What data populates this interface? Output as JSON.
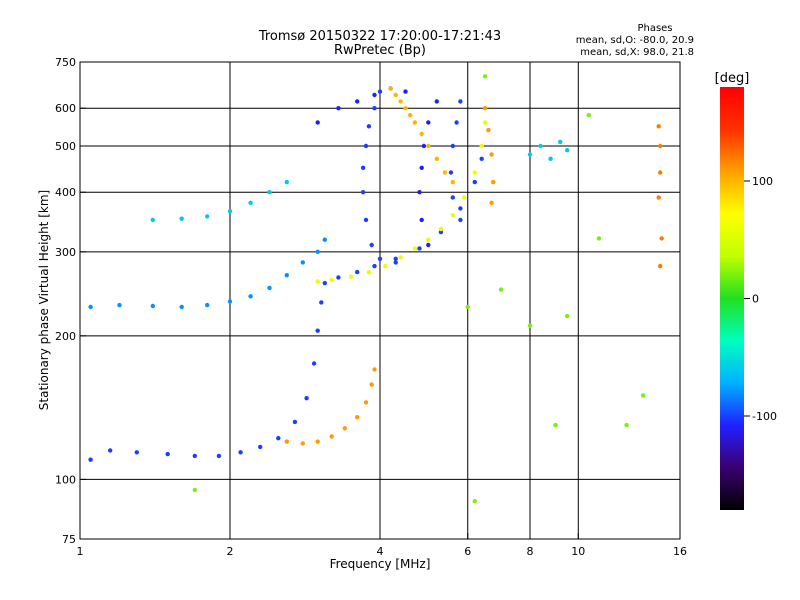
{
  "chart_data": {
    "type": "scatter",
    "title": "Tromsø 20150322 17:20:00-17:21:43",
    "subtitle": "RwPretec (Bp)",
    "xlabel": "Frequency [MHz]",
    "ylabel": "Stationary phase Virtual Height [km]",
    "x_scale": "log",
    "y_scale": "log",
    "xlim": [
      1,
      16
    ],
    "ylim": [
      75,
      750
    ],
    "x_ticks": [
      1,
      2,
      4,
      6,
      8,
      10,
      16
    ],
    "y_ticks": [
      75,
      100,
      200,
      300,
      400,
      500,
      600,
      750
    ],
    "grid": true,
    "stats": {
      "heading": "Phases",
      "line1": "mean, sd,O: -80.0, 20.9",
      "line2": "mean, sd,X: 98.0, 21.8"
    },
    "colorbar": {
      "label": "[deg]",
      "min": -180,
      "max": 180,
      "ticks": [
        100,
        0,
        -100
      ],
      "colors": [
        "#000000",
        "#3a0070",
        "#2020ff",
        "#00b0ff",
        "#00ffc0",
        "#20e020",
        "#c0ff00",
        "#ffff00",
        "#ffa000",
        "#ff3000",
        "#ff0000"
      ]
    },
    "series": [
      {
        "values": [
          [
            1.05,
            110
          ],
          [
            1.15,
            115
          ],
          [
            1.3,
            114
          ],
          [
            1.5,
            113
          ],
          [
            1.7,
            112
          ],
          [
            1.9,
            112
          ],
          [
            2.1,
            114
          ],
          [
            2.3,
            117
          ],
          [
            2.5,
            122
          ],
          [
            2.7,
            132
          ],
          [
            2.85,
            148
          ],
          [
            2.95,
            175
          ],
          [
            3.0,
            205
          ],
          [
            3.05,
            235
          ],
          [
            3.1,
            258
          ],
          [
            3.3,
            265
          ],
          [
            3.6,
            272
          ],
          [
            3.9,
            280
          ],
          [
            4.3,
            290
          ],
          [
            4.8,
            305
          ],
          [
            5.3,
            330
          ],
          [
            5.8,
            370
          ],
          [
            6.2,
            420
          ],
          [
            6.4,
            470
          ]
        ],
        "phase": -100
      },
      {
        "values": [
          [
            2.6,
            120
          ],
          [
            2.8,
            119
          ],
          [
            3.0,
            120
          ],
          [
            3.2,
            123
          ],
          [
            3.4,
            128
          ],
          [
            3.6,
            135
          ],
          [
            3.75,
            145
          ],
          [
            3.85,
            158
          ],
          [
            3.9,
            170
          ]
        ],
        "phase": 110
      },
      {
        "values": [
          [
            1.05,
            230
          ],
          [
            1.2,
            232
          ],
          [
            1.4,
            231
          ],
          [
            1.6,
            230
          ],
          [
            1.8,
            232
          ],
          [
            2.0,
            236
          ],
          [
            2.2,
            242
          ],
          [
            2.4,
            252
          ],
          [
            2.6,
            268
          ],
          [
            2.8,
            285
          ],
          [
            3.0,
            300
          ],
          [
            3.1,
            318
          ]
        ],
        "phase": -80
      },
      {
        "values": [
          [
            1.4,
            350
          ],
          [
            1.6,
            352
          ],
          [
            1.8,
            356
          ],
          [
            2.0,
            365
          ],
          [
            2.2,
            380
          ],
          [
            2.4,
            400
          ],
          [
            2.6,
            420
          ]
        ],
        "phase": -60
      },
      {
        "values": [
          [
            3.0,
            260
          ],
          [
            3.2,
            262
          ],
          [
            3.5,
            266
          ],
          [
            3.8,
            272
          ],
          [
            4.1,
            280
          ],
          [
            4.4,
            292
          ],
          [
            4.7,
            305
          ],
          [
            5.0,
            318
          ],
          [
            5.3,
            335
          ],
          [
            5.6,
            358
          ],
          [
            5.9,
            390
          ],
          [
            6.2,
            440
          ],
          [
            6.4,
            500
          ],
          [
            6.5,
            560
          ]
        ],
        "phase": 60
      },
      {
        "values": [
          [
            3.0,
            560
          ],
          [
            3.3,
            600
          ],
          [
            3.6,
            620
          ],
          [
            3.9,
            640
          ],
          [
            4.2,
            660
          ],
          [
            4.5,
            650
          ]
        ],
        "phase": -110
      },
      {
        "values": [
          [
            4.2,
            660
          ],
          [
            4.3,
            640
          ],
          [
            4.4,
            620
          ],
          [
            4.5,
            600
          ],
          [
            4.6,
            580
          ],
          [
            4.7,
            560
          ],
          [
            4.85,
            530
          ],
          [
            5.0,
            500
          ],
          [
            5.2,
            470
          ],
          [
            5.4,
            440
          ],
          [
            5.6,
            420
          ]
        ],
        "phase": 100
      },
      {
        "values": [
          [
            4.0,
            650
          ],
          [
            3.9,
            600
          ],
          [
            3.8,
            550
          ],
          [
            3.75,
            500
          ],
          [
            3.7,
            450
          ],
          [
            3.7,
            400
          ],
          [
            3.75,
            350
          ],
          [
            3.85,
            310
          ],
          [
            4.0,
            290
          ],
          [
            4.3,
            285
          ]
        ],
        "phase": -100
      },
      {
        "values": [
          [
            5.2,
            620
          ],
          [
            5.0,
            560
          ],
          [
            4.9,
            500
          ],
          [
            4.85,
            450
          ],
          [
            4.8,
            400
          ],
          [
            4.85,
            350
          ],
          [
            5.0,
            310
          ]
        ],
        "phase": -110
      },
      {
        "values": [
          [
            5.8,
            620
          ],
          [
            5.7,
            560
          ],
          [
            5.6,
            500
          ],
          [
            5.55,
            440
          ],
          [
            5.6,
            390
          ],
          [
            5.8,
            350
          ]
        ],
        "phase": -100
      },
      {
        "values": [
          [
            6.5,
            600
          ],
          [
            6.6,
            540
          ],
          [
            6.7,
            480
          ],
          [
            6.75,
            420
          ],
          [
            6.7,
            380
          ]
        ],
        "phase": 110
      },
      {
        "values": [
          [
            8.0,
            480
          ],
          [
            8.4,
            500
          ],
          [
            8.8,
            470
          ],
          [
            9.2,
            510
          ],
          [
            9.5,
            490
          ]
        ],
        "phase": -60
      },
      {
        "values": [
          [
            14.5,
            550
          ],
          [
            14.6,
            500
          ],
          [
            14.6,
            440
          ],
          [
            14.5,
            390
          ],
          [
            14.7,
            320
          ],
          [
            14.6,
            280
          ]
        ],
        "phase": 120
      },
      {
        "values": [
          [
            7.0,
            250
          ],
          [
            6.0,
            230
          ],
          [
            8.0,
            210
          ],
          [
            6.5,
            700
          ],
          [
            10.5,
            580
          ],
          [
            11.0,
            320
          ],
          [
            12.5,
            130
          ],
          [
            9.0,
            130
          ],
          [
            6.2,
            90
          ],
          [
            1.7,
            95
          ],
          [
            13.5,
            150
          ],
          [
            9.5,
            220
          ]
        ],
        "phase": 20
      }
    ]
  }
}
